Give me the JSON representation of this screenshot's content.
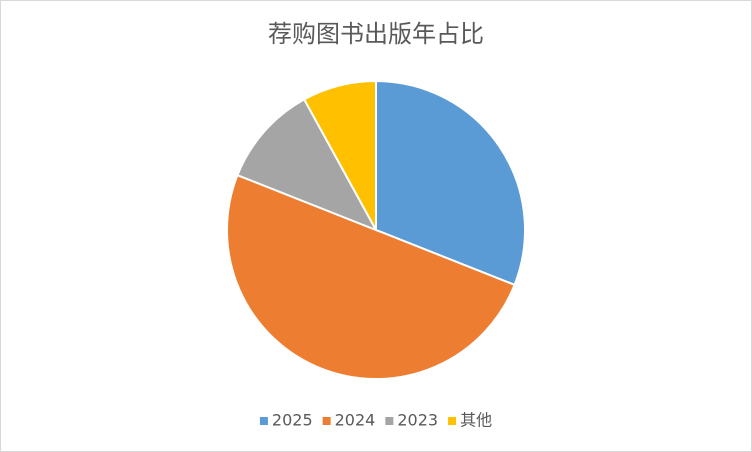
{
  "chart_data": {
    "type": "pie",
    "title": "荐购图书出版年占比",
    "categories": [
      "2025",
      "2024",
      "2023",
      "其他"
    ],
    "values": [
      31,
      50,
      11,
      8
    ],
    "colors": [
      "#5b9bd5",
      "#ed7d31",
      "#a5a5a5",
      "#ffc000"
    ],
    "legend": "bottom"
  }
}
